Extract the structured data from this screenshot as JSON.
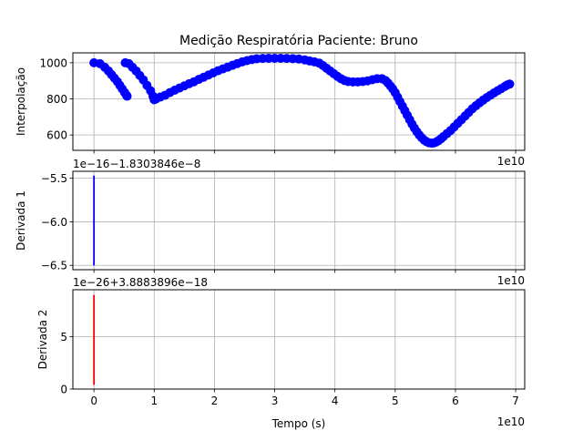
{
  "title": "Medição Respiratória Paciente: Bruno",
  "colors": {
    "series1": "#0000ff",
    "series2": "#0000ff",
    "series3": "#ff0000",
    "grid": "#b0b0b0"
  },
  "chart_data": [
    {
      "type": "scatter",
      "ylabel": "Interpolação",
      "xlim": [
        -0.35,
        7.15
      ],
      "ylim": [
        515,
        1055
      ],
      "x_ticks": [
        0,
        1,
        2,
        3,
        4,
        5,
        6,
        7
      ],
      "x_multiplier": "1e10",
      "y_ticks": [
        600,
        800,
        1000
      ],
      "grid": true,
      "points": [
        [
          0.0,
          1000
        ],
        [
          0.1,
          995
        ],
        [
          0.18,
          975
        ],
        [
          0.24,
          955
        ],
        [
          0.29,
          935
        ],
        [
          0.34,
          915
        ],
        [
          0.39,
          895
        ],
        [
          0.43,
          875
        ],
        [
          0.47,
          855
        ],
        [
          0.51,
          835
        ],
        [
          0.54,
          820
        ],
        [
          0.55,
          815
        ],
        [
          0.52,
          1000
        ],
        [
          0.58,
          995
        ],
        [
          0.64,
          975
        ],
        [
          0.7,
          955
        ],
        [
          0.76,
          930
        ],
        [
          0.82,
          905
        ],
        [
          0.88,
          875
        ],
        [
          0.94,
          845
        ],
        [
          0.98,
          815
        ],
        [
          1.0,
          795
        ],
        [
          1.03,
          800
        ],
        [
          1.1,
          810
        ],
        [
          1.18,
          820
        ],
        [
          1.26,
          835
        ],
        [
          1.34,
          848
        ],
        [
          1.42,
          860
        ],
        [
          1.5,
          872
        ],
        [
          1.58,
          884
        ],
        [
          1.66,
          895
        ],
        [
          1.74,
          908
        ],
        [
          1.82,
          920
        ],
        [
          1.9,
          932
        ],
        [
          1.98,
          944
        ],
        [
          2.06,
          956
        ],
        [
          2.14,
          966
        ],
        [
          2.22,
          976
        ],
        [
          2.3,
          986
        ],
        [
          2.38,
          996
        ],
        [
          2.46,
          1005
        ],
        [
          2.54,
          1012
        ],
        [
          2.62,
          1018
        ],
        [
          2.7,
          1022
        ],
        [
          2.8,
          1024
        ],
        [
          2.9,
          1025
        ],
        [
          3.0,
          1025
        ],
        [
          3.1,
          1025
        ],
        [
          3.2,
          1024
        ],
        [
          3.3,
          1023
        ],
        [
          3.4,
          1021
        ],
        [
          3.5,
          1016
        ],
        [
          3.58,
          1010
        ],
        [
          3.66,
          1005
        ],
        [
          3.74,
          998
        ],
        [
          3.8,
          985
        ],
        [
          3.86,
          970
        ],
        [
          3.92,
          955
        ],
        [
          3.98,
          940
        ],
        [
          4.04,
          925
        ],
        [
          4.1,
          912
        ],
        [
          4.16,
          902
        ],
        [
          4.22,
          896
        ],
        [
          4.3,
          894
        ],
        [
          4.38,
          894
        ],
        [
          4.46,
          896
        ],
        [
          4.54,
          900
        ],
        [
          4.62,
          906
        ],
        [
          4.7,
          912
        ],
        [
          4.78,
          912
        ],
        [
          4.84,
          902
        ],
        [
          4.88,
          888
        ],
        [
          4.92,
          872
        ],
        [
          4.96,
          855
        ],
        [
          5.0,
          835
        ],
        [
          5.04,
          810
        ],
        [
          5.08,
          785
        ],
        [
          5.12,
          760
        ],
        [
          5.16,
          735
        ],
        [
          5.2,
          710
        ],
        [
          5.24,
          685
        ],
        [
          5.28,
          660
        ],
        [
          5.32,
          638
        ],
        [
          5.36,
          618
        ],
        [
          5.4,
          600
        ],
        [
          5.44,
          585
        ],
        [
          5.48,
          572
        ],
        [
          5.52,
          563
        ],
        [
          5.56,
          557
        ],
        [
          5.6,
          555
        ],
        [
          5.64,
          556
        ],
        [
          5.68,
          561
        ],
        [
          5.72,
          569
        ],
        [
          5.76,
          579
        ],
        [
          5.8,
          591
        ],
        [
          5.86,
          608
        ],
        [
          5.92,
          625
        ],
        [
          5.98,
          645
        ],
        [
          6.04,
          665
        ],
        [
          6.1,
          685
        ],
        [
          6.16,
          705
        ],
        [
          6.22,
          725
        ],
        [
          6.28,
          745
        ],
        [
          6.34,
          762
        ],
        [
          6.4,
          778
        ],
        [
          6.46,
          793
        ],
        [
          6.52,
          807
        ],
        [
          6.58,
          820
        ],
        [
          6.64,
          833
        ],
        [
          6.7,
          845
        ],
        [
          6.76,
          857
        ],
        [
          6.82,
          869
        ],
        [
          6.86,
          877
        ],
        [
          6.9,
          882
        ]
      ]
    },
    {
      "type": "line",
      "ylabel": "Derivada 1",
      "offset_text": "1e−16−1.8303846e−8",
      "xlim": [
        -0.35,
        7.15
      ],
      "ylim": [
        -6.55,
        -5.42
      ],
      "y_ticks": [
        -5.5,
        -6.0,
        -6.5
      ],
      "y_tick_labels": [
        "−5.5",
        "−6.0",
        "−6.5"
      ],
      "x_multiplier": "1e10",
      "grid": true,
      "series": [
        {
          "x": [
            0.0,
            0.0
          ],
          "y": [
            -6.5,
            -5.47
          ]
        }
      ]
    },
    {
      "type": "line",
      "ylabel": "Derivada 2",
      "xlabel": "Tempo (s)",
      "offset_text": "1e−26+3.8883896e−18",
      "xlim": [
        -0.35,
        7.15
      ],
      "ylim": [
        0,
        9.5
      ],
      "x_ticks": [
        0,
        1,
        2,
        3,
        4,
        5,
        6,
        7
      ],
      "y_ticks": [
        0,
        5
      ],
      "x_multiplier": "1e10",
      "grid": true,
      "series": [
        {
          "x": [
            0.0,
            0.0
          ],
          "y": [
            0.4,
            9.0
          ]
        }
      ]
    }
  ]
}
